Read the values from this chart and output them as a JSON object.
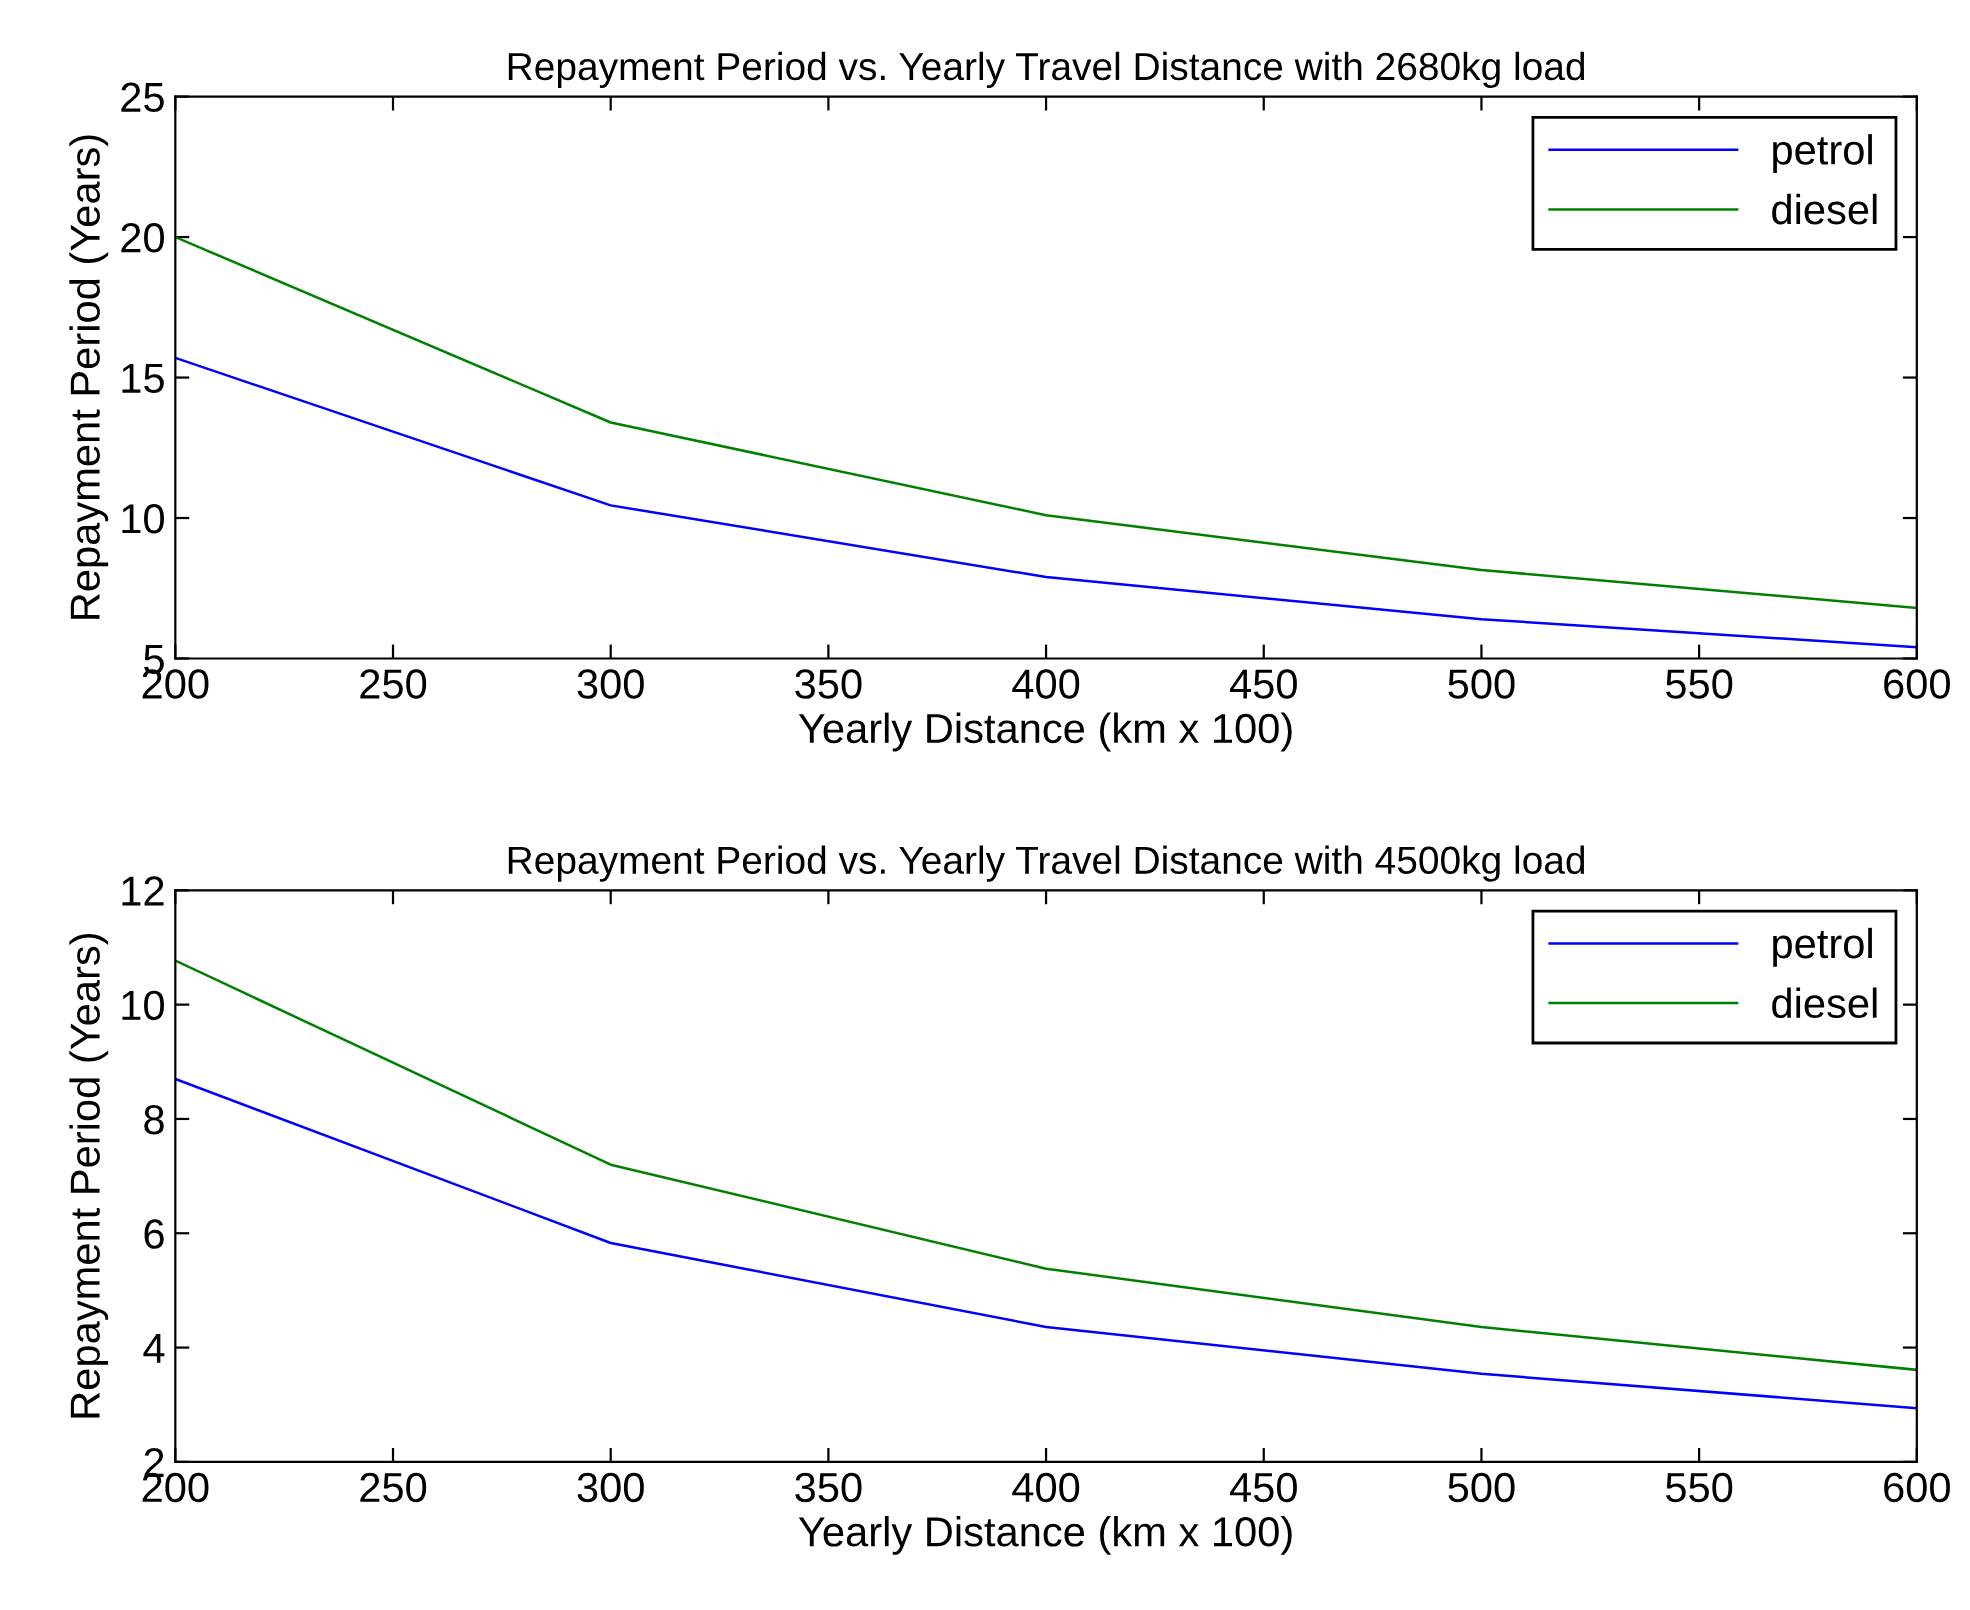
{
  "chart_data": [
    {
      "type": "line",
      "title": "Repayment Period vs. Yearly Travel Distance with 2680kg load",
      "xlabel": "Yearly Distance (km x 100)",
      "ylabel": "Repayment Period (Years)",
      "x": [
        200,
        300,
        400,
        500,
        600
      ],
      "series": [
        {
          "name": "petrol",
          "color": "#0000ff",
          "values": [
            15.7,
            10.45,
            7.9,
            6.4,
            5.4
          ]
        },
        {
          "name": "diesel",
          "color": "#008000",
          "values": [
            20.0,
            13.4,
            10.1,
            8.15,
            6.8
          ]
        }
      ],
      "xlim": [
        200,
        600
      ],
      "xticks": [
        200,
        250,
        300,
        350,
        400,
        450,
        500,
        550,
        600
      ],
      "ylim": [
        5,
        25
      ],
      "yticks": [
        5,
        10,
        15,
        20,
        25
      ],
      "legend": "top right",
      "grid": false
    },
    {
      "type": "line",
      "title": "Repayment Period vs. Yearly Travel Distance with 4500kg load",
      "xlabel": "Yearly Distance (km x 100)",
      "ylabel": "Repayment Period (Years)",
      "x": [
        200,
        300,
        400,
        500,
        600
      ],
      "series": [
        {
          "name": "petrol",
          "color": "#0000ff",
          "values": [
            8.7,
            5.83,
            4.36,
            3.54,
            2.94
          ]
        },
        {
          "name": "diesel",
          "color": "#008000",
          "values": [
            10.77,
            7.2,
            5.38,
            4.36,
            3.61
          ]
        }
      ],
      "xlim": [
        200,
        600
      ],
      "xticks": [
        200,
        250,
        300,
        350,
        400,
        450,
        500,
        550,
        600
      ],
      "ylim": [
        2,
        12
      ],
      "yticks": [
        2,
        4,
        6,
        8,
        10,
        12
      ],
      "legend": "top right",
      "grid": false
    }
  ]
}
